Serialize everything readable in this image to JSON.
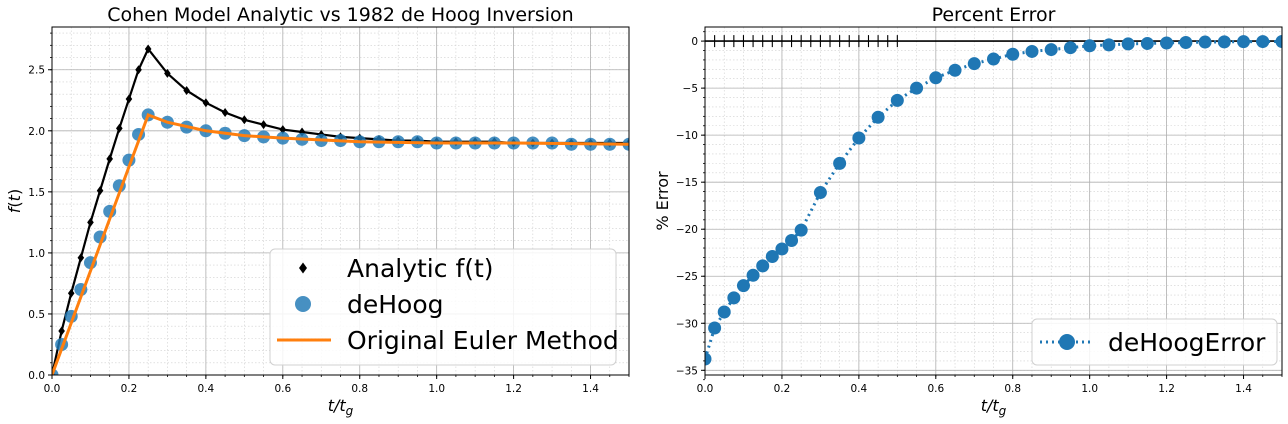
{
  "chart_data": [
    {
      "type": "line",
      "title": "Cohen Model Analytic vs 1982 de Hoog Inversion",
      "xlabel": "t/t_g",
      "ylabel": "f(t)",
      "xlim": [
        0,
        1.5
      ],
      "ylim": [
        0,
        2.85
      ],
      "xticks": [
        "0.0",
        "0.2",
        "0.4",
        "0.6",
        "0.8",
        "1.0",
        "1.2",
        "1.4"
      ],
      "yticks": [
        "0.0",
        "0.5",
        "1.0",
        "1.5",
        "2.0",
        "2.5"
      ],
      "grid": true,
      "legend_position": "lower-right",
      "series": [
        {
          "name": "Analytic f(t)",
          "color": "#000000",
          "x": [
            0,
            0.025,
            0.05,
            0.075,
            0.1,
            0.125,
            0.15,
            0.175,
            0.2,
            0.225,
            0.25,
            0.3,
            0.35,
            0.4,
            0.45,
            0.5,
            0.55,
            0.6,
            0.65,
            0.7,
            0.75,
            0.8,
            0.85,
            0.9,
            0.95,
            1.0,
            1.05,
            1.1,
            1.15,
            1.2,
            1.25,
            1.3,
            1.35,
            1.4,
            1.45,
            1.5
          ],
          "y": [
            0,
            0.36,
            0.67,
            0.96,
            1.25,
            1.51,
            1.77,
            2.02,
            2.26,
            2.5,
            2.67,
            2.47,
            2.33,
            2.23,
            2.15,
            2.09,
            2.05,
            2.01,
            1.99,
            1.97,
            1.95,
            1.94,
            1.93,
            1.92,
            1.92,
            1.91,
            1.91,
            1.91,
            1.91,
            1.9,
            1.9,
            1.9,
            1.9,
            1.9,
            1.9,
            1.9
          ]
        },
        {
          "name": "deHoog",
          "color": "#1f77b4",
          "x": [
            0,
            0.025,
            0.05,
            0.075,
            0.1,
            0.125,
            0.15,
            0.175,
            0.2,
            0.225,
            0.25,
            0.3,
            0.35,
            0.4,
            0.45,
            0.5,
            0.55,
            0.6,
            0.65,
            0.7,
            0.75,
            0.8,
            0.85,
            0.9,
            0.95,
            1.0,
            1.05,
            1.1,
            1.15,
            1.2,
            1.25,
            1.3,
            1.35,
            1.4,
            1.45,
            1.5
          ],
          "y": [
            0,
            0.25,
            0.48,
            0.7,
            0.92,
            1.13,
            1.34,
            1.55,
            1.76,
            1.97,
            2.13,
            2.07,
            2.03,
            2.0,
            1.98,
            1.96,
            1.95,
            1.94,
            1.93,
            1.92,
            1.92,
            1.91,
            1.91,
            1.91,
            1.91,
            1.9,
            1.9,
            1.9,
            1.9,
            1.9,
            1.9,
            1.9,
            1.89,
            1.89,
            1.89,
            1.89
          ]
        },
        {
          "name": "Original Euler Method",
          "color": "#ff7f0e",
          "x": [
            0,
            0.25,
            0.3,
            0.4,
            0.5,
            0.6,
            0.8,
            1.0,
            1.2,
            1.5
          ],
          "y": [
            0,
            2.13,
            2.07,
            2.0,
            1.96,
            1.94,
            1.91,
            1.9,
            1.9,
            1.89
          ]
        }
      ]
    },
    {
      "type": "line",
      "title": "Percent Error",
      "xlabel": "t/t_g",
      "ylabel": "% Error",
      "xlim": [
        0,
        1.5
      ],
      "ylim": [
        -35.5,
        1.5
      ],
      "xticks": [
        "0.0",
        "0.2",
        "0.4",
        "0.6",
        "0.8",
        "1.0",
        "1.2",
        "1.4"
      ],
      "yticks": [
        "0",
        "−5",
        "−10",
        "−15",
        "−20",
        "−25",
        "−30",
        "−35"
      ],
      "grid": true,
      "legend_position": "lower-right",
      "series": [
        {
          "name": "deHoogError",
          "color": "#1f77b4",
          "x": [
            0,
            0.025,
            0.05,
            0.075,
            0.1,
            0.125,
            0.15,
            0.175,
            0.2,
            0.225,
            0.25,
            0.3,
            0.35,
            0.4,
            0.45,
            0.5,
            0.55,
            0.6,
            0.65,
            0.7,
            0.75,
            0.8,
            0.85,
            0.9,
            0.95,
            1.0,
            1.05,
            1.1,
            1.15,
            1.2,
            1.25,
            1.3,
            1.35,
            1.4,
            1.45,
            1.5
          ],
          "y": [
            -33.8,
            -30.5,
            -28.8,
            -27.3,
            -26.0,
            -24.9,
            -23.9,
            -22.9,
            -22.1,
            -21.2,
            -20.1,
            -16.1,
            -13.0,
            -10.3,
            -8.1,
            -6.3,
            -5.0,
            -3.9,
            -3.1,
            -2.4,
            -1.9,
            -1.4,
            -1.1,
            -0.9,
            -0.7,
            -0.5,
            -0.4,
            -0.3,
            -0.25,
            -0.2,
            -0.15,
            -0.1,
            -0.08,
            -0.06,
            -0.05,
            -0.04
          ]
        }
      ]
    }
  ]
}
